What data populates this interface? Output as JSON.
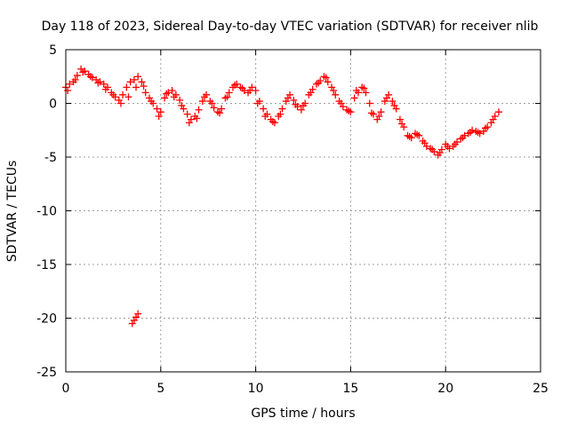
{
  "chart_data": {
    "type": "scatter",
    "title": "Day 118 of 2023, Sidereal Day-to-day VTEC variation (SDTVAR) for receiver nlib",
    "xlabel": "GPS time / hours",
    "ylabel": "SDTVAR / TECUs",
    "xlim": [
      0,
      25
    ],
    "ylim": [
      -25,
      5
    ],
    "xticks": [
      0,
      5,
      10,
      15,
      20,
      25
    ],
    "xtick_labels": [
      "0",
      "5",
      "10",
      "15",
      "20",
      "25"
    ],
    "yticks": [
      5,
      0,
      -5,
      -10,
      -15,
      -20,
      -25
    ],
    "ytick_labels": [
      "5",
      "0",
      "-5",
      "-10",
      "-15",
      "-20",
      "-25"
    ],
    "grid": true,
    "marker": "+",
    "series_color": "#ff0000",
    "series": [
      {
        "name": "SDTVAR",
        "x": [
          0.0,
          0.2,
          0.4,
          0.6,
          0.8,
          1.0,
          1.2,
          1.4,
          1.6,
          1.8,
          2.0,
          2.2,
          2.4,
          2.6,
          2.8,
          3.0,
          3.2,
          3.4,
          3.6,
          3.8,
          4.0,
          4.2,
          4.4,
          4.6,
          4.8,
          5.0,
          5.2,
          5.4,
          5.6,
          5.8,
          6.0,
          6.2,
          6.4,
          6.6,
          6.8,
          7.0,
          7.2,
          7.4,
          7.6,
          7.8,
          8.0,
          8.2,
          8.4,
          8.6,
          8.8,
          9.0,
          9.2,
          9.4,
          9.6,
          9.8,
          10.0,
          10.2,
          10.4,
          10.6,
          10.8,
          11.0,
          11.2,
          11.4,
          11.6,
          11.8,
          12.0,
          12.2,
          12.4,
          12.6,
          12.8,
          13.0,
          13.2,
          13.4,
          13.6,
          13.8,
          14.0,
          14.2,
          14.4,
          14.6,
          14.8,
          15.0,
          15.2,
          15.4,
          15.6,
          15.8,
          16.0,
          16.2,
          16.4,
          16.6,
          16.8,
          17.0,
          17.2,
          17.4,
          17.6,
          17.8,
          18.0,
          18.2,
          18.4,
          18.6,
          18.8,
          19.0,
          19.2,
          19.4,
          19.6,
          19.8,
          20.0,
          20.2,
          20.4,
          20.6,
          20.8,
          21.0,
          21.2,
          21.4,
          21.6,
          21.8,
          22.0,
          22.2,
          22.4,
          22.6,
          22.8,
          0.1,
          0.5,
          0.9,
          1.3,
          1.7,
          2.1,
          2.5,
          2.9,
          3.3,
          3.7,
          4.1,
          4.5,
          4.9,
          5.3,
          5.7,
          6.1,
          6.5,
          6.9,
          7.3,
          7.7,
          8.1,
          8.5,
          8.9,
          9.3,
          9.7,
          10.1,
          10.5,
          10.9,
          11.3,
          11.7,
          12.1,
          12.5,
          12.9,
          13.3,
          13.7,
          14.1,
          14.5,
          14.9,
          15.3,
          15.7,
          16.1,
          16.5,
          16.9,
          17.3,
          17.7,
          18.1,
          18.5,
          18.9,
          19.3,
          19.7,
          20.1,
          20.5,
          20.9,
          21.3,
          21.7,
          22.1,
          22.5,
          3.5,
          3.6,
          3.7,
          3.8
        ],
        "y": [
          1.5,
          1.8,
          2.0,
          2.6,
          3.2,
          3.0,
          2.7,
          2.4,
          2.2,
          2.0,
          1.8,
          1.5,
          1.0,
          0.6,
          0.3,
          0.8,
          1.5,
          2.0,
          2.2,
          2.5,
          2.0,
          1.0,
          0.5,
          0.0,
          -0.5,
          -0.8,
          0.5,
          1.0,
          1.2,
          0.8,
          0.3,
          -0.5,
          -1.0,
          -1.5,
          -1.2,
          -0.6,
          0.2,
          0.8,
          0.2,
          -0.4,
          -0.8,
          -0.5,
          0.5,
          1.0,
          1.5,
          1.8,
          1.5,
          1.2,
          1.0,
          1.5,
          1.2,
          0.2,
          -0.5,
          -1.0,
          -1.5,
          -1.8,
          -1.2,
          -0.5,
          0.2,
          0.8,
          0.3,
          -0.3,
          -0.6,
          0.0,
          0.8,
          1.3,
          1.8,
          2.1,
          2.5,
          2.0,
          1.5,
          0.8,
          0.2,
          -0.3,
          -0.6,
          -0.8,
          0.5,
          1.0,
          1.5,
          1.0,
          0.0,
          -1.0,
          -1.5,
          -0.8,
          0.2,
          0.8,
          0.2,
          -0.5,
          -1.5,
          -2.2,
          -3.0,
          -3.2,
          -2.8,
          -3.0,
          -3.5,
          -4.0,
          -4.2,
          -4.5,
          -4.8,
          -4.3,
          -3.8,
          -4.2,
          -4.0,
          -3.6,
          -3.3,
          -3.0,
          -2.8,
          -2.5,
          -2.6,
          -2.8,
          -2.6,
          -2.2,
          -1.8,
          -1.2,
          -0.8,
          1.2,
          2.2,
          2.9,
          2.5,
          1.9,
          1.3,
          0.8,
          0.0,
          0.6,
          1.5,
          1.6,
          0.2,
          -1.2,
          0.9,
          0.6,
          -0.2,
          -1.8,
          -1.4,
          0.6,
          0.0,
          -0.9,
          0.6,
          1.7,
          1.4,
          1.2,
          0.0,
          -1.2,
          -1.7,
          -1.0,
          0.5,
          -0.1,
          -0.2,
          1.0,
          1.9,
          2.4,
          1.2,
          0.0,
          -0.7,
          1.2,
          1.4,
          -0.9,
          -1.2,
          0.5,
          -0.2,
          -1.9,
          -3.1,
          -2.9,
          -3.7,
          -4.3,
          -4.6,
          -4.0,
          -3.8,
          -3.2,
          -2.7,
          -2.7,
          -2.3,
          -1.5,
          -20.5,
          -20.2,
          -19.9,
          -19.6
        ]
      }
    ]
  }
}
